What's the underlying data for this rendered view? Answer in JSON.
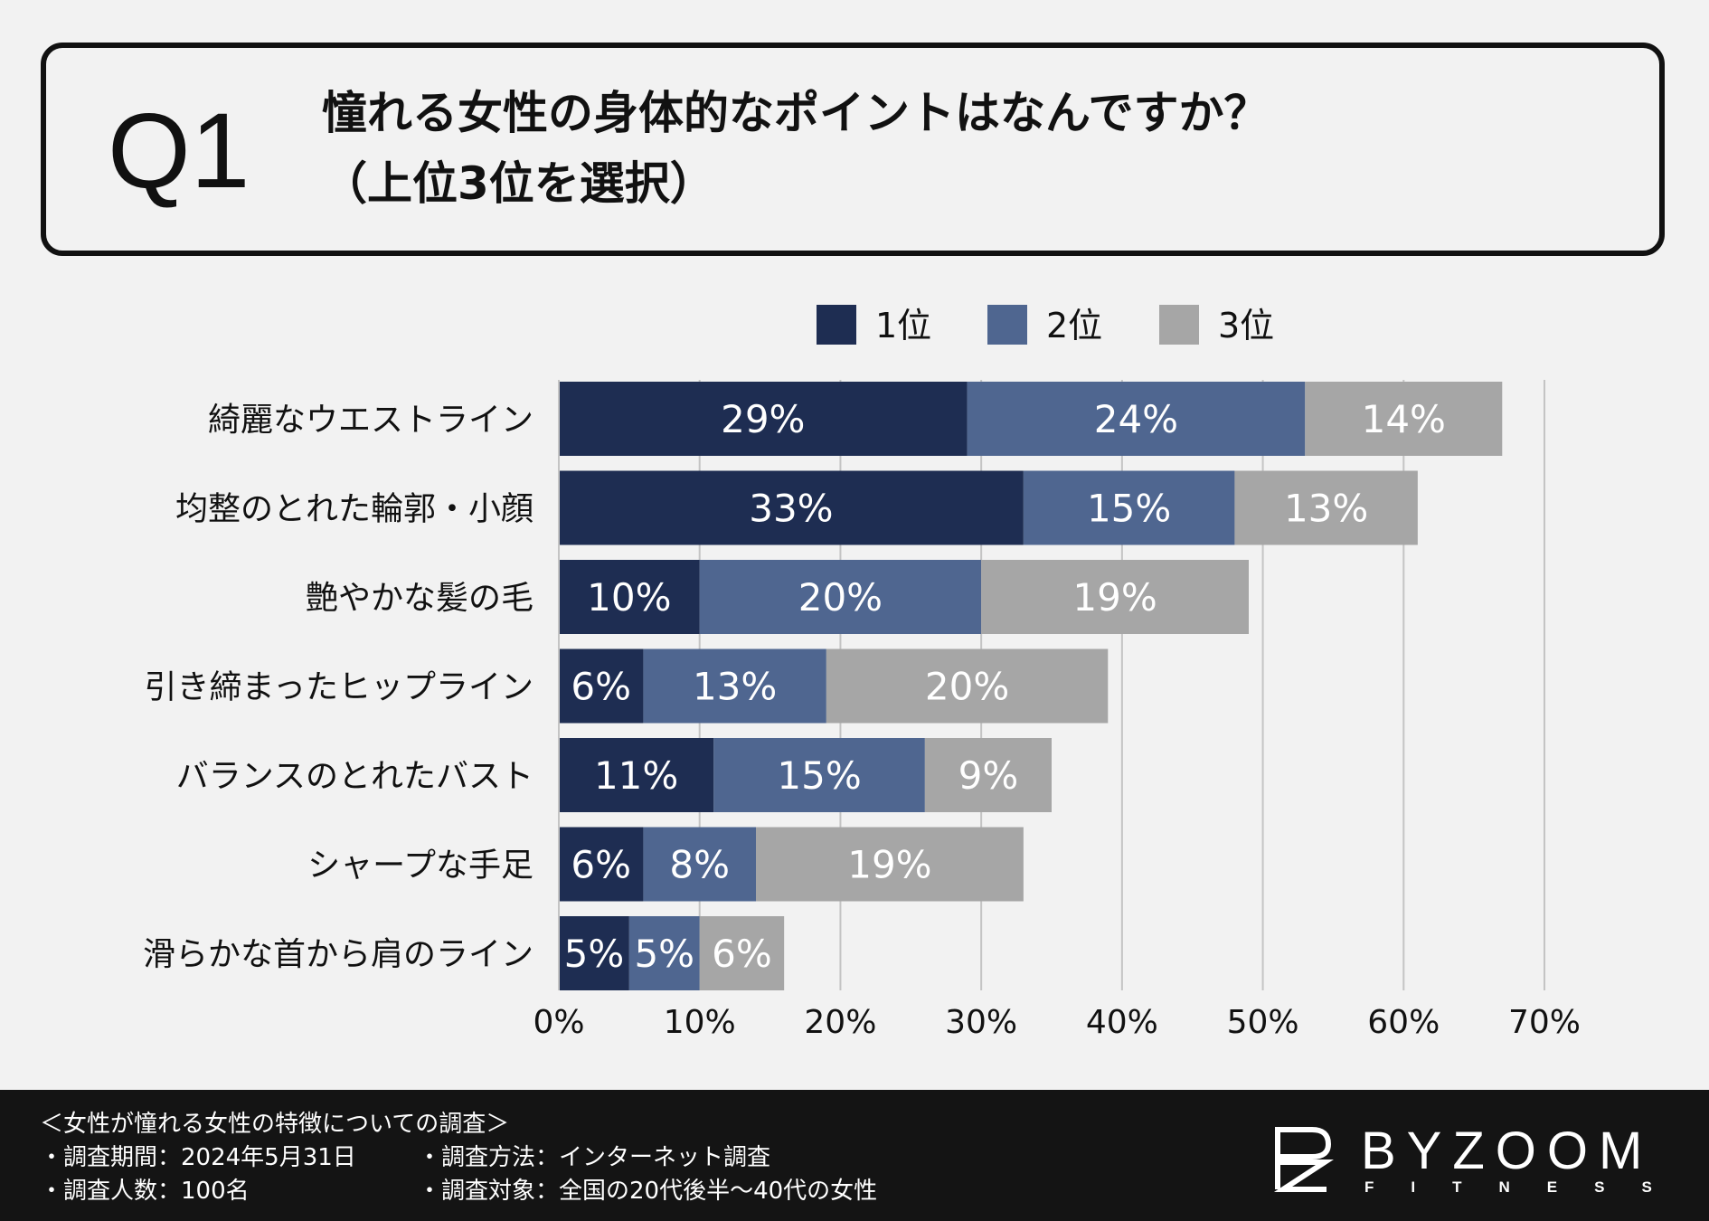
{
  "header": {
    "q_label": "Q1",
    "question_line1": "憧れる女性の身体的なポイントはなんですか？",
    "question_line2": "（上位3位を選択）"
  },
  "colors": {
    "rank1": "#1e2d52",
    "rank2": "#4f6690",
    "rank3": "#a6a6a6"
  },
  "chart_data": {
    "type": "bar",
    "orientation": "horizontal",
    "stacked": true,
    "categories": [
      "綺麗なウエストライン",
      "均整のとれた輪郭・小顔",
      "艶やかな髪の毛",
      "引き締まったヒップライン",
      "バランスのとれたバスト",
      "シャープな手足",
      "滑らかな首から肩のライン"
    ],
    "series": [
      {
        "name": "1位",
        "values": [
          29,
          33,
          10,
          6,
          11,
          6,
          5
        ]
      },
      {
        "name": "2位",
        "values": [
          24,
          15,
          20,
          13,
          15,
          8,
          5
        ]
      },
      {
        "name": "3位",
        "values": [
          14,
          13,
          19,
          20,
          9,
          19,
          6
        ]
      }
    ],
    "xlim": [
      0,
      70
    ],
    "xticks": [
      0,
      10,
      20,
      30,
      40,
      50,
      60,
      70
    ],
    "tick_suffix": "%",
    "grid": true,
    "legend_position": "top"
  },
  "footer": {
    "survey_title": "＜女性が憧れる女性の特徴についての調査＞",
    "period": "・調査期間：2024年5月31日",
    "count": "・調査人数：100名",
    "method": "・調査方法：インターネット調査",
    "target": "・調査対象：全国の20代後半～40代の女性",
    "logo_text": "BYZOOM",
    "logo_sub": "FITNESS"
  }
}
